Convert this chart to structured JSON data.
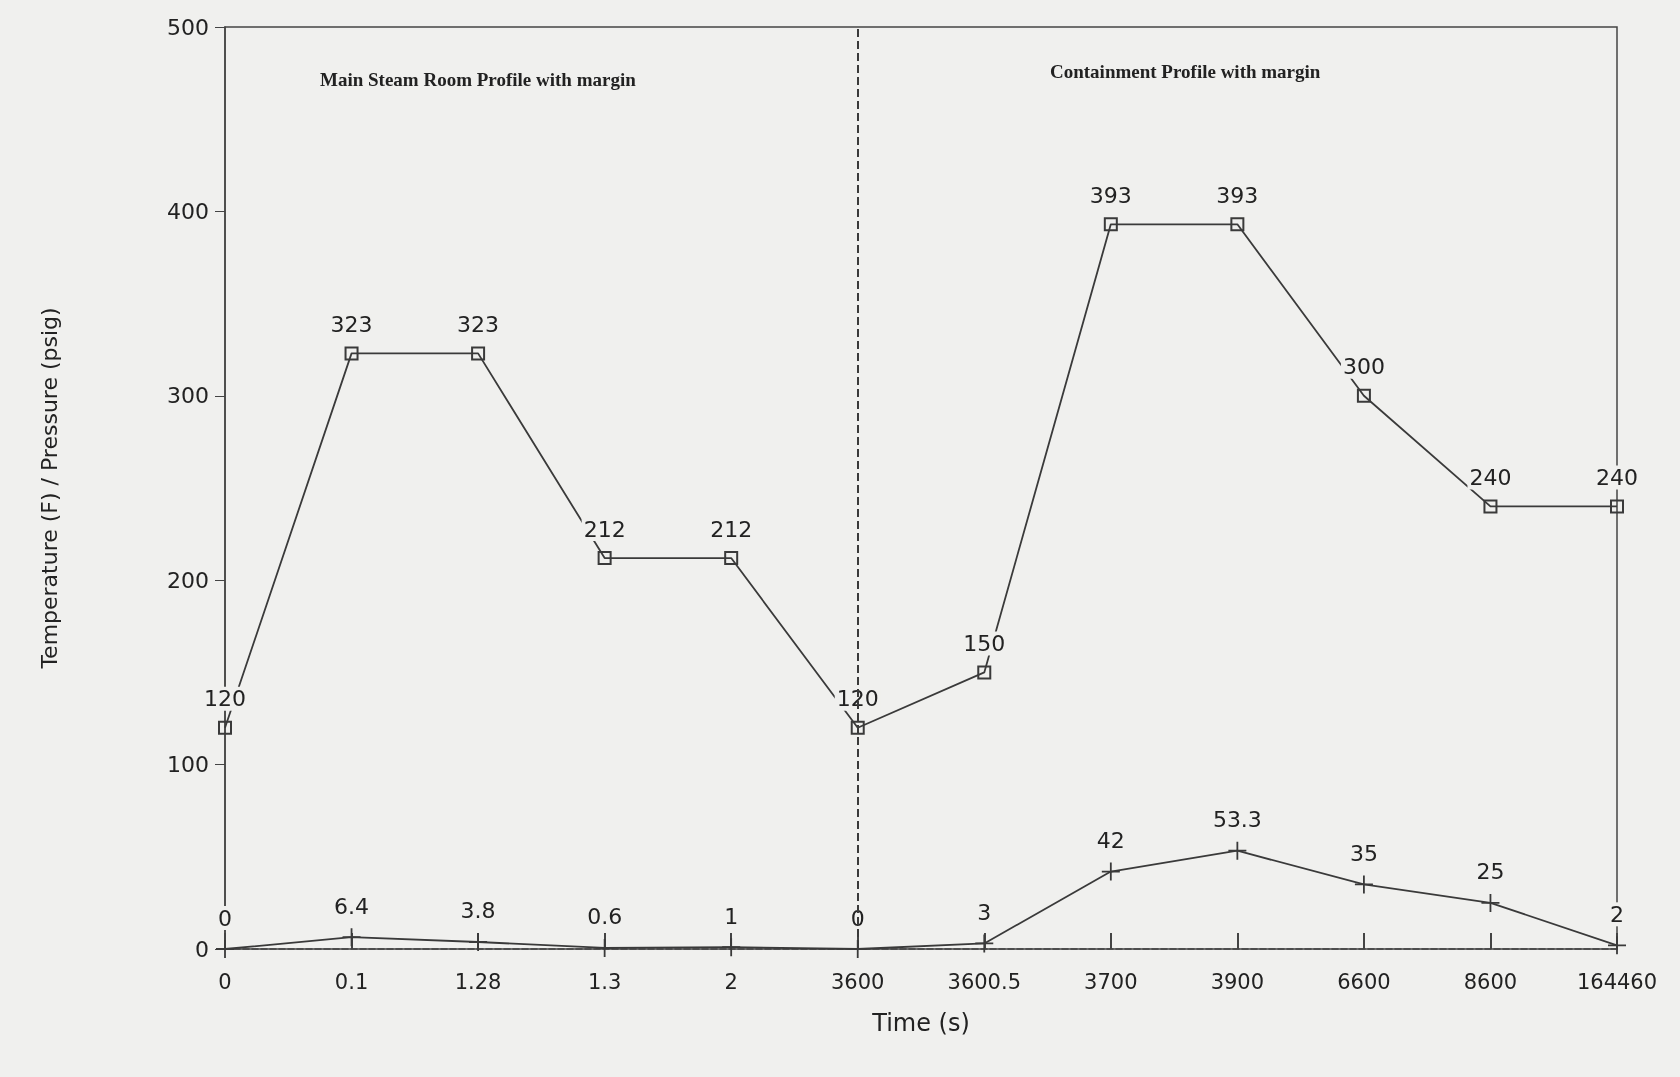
{
  "chart_data": {
    "type": "line",
    "xlabel": "Time (s)",
    "ylabel": "Temperature (F) / Pressure (psig)",
    "categories": [
      "0",
      "0.1",
      "1.28",
      "1.3",
      "2",
      "3600",
      "3600.5",
      "3700",
      "3900",
      "6600",
      "8600",
      "164460"
    ],
    "series": [
      {
        "color": "#3a3a3a",
        "marker": "square",
        "values": [
          120,
          323,
          323,
          212,
          212,
          120,
          150,
          393,
          393,
          300,
          240,
          240
        ]
      },
      {
        "color": "#3a3a3a",
        "marker": "cross",
        "values": [
          0,
          6.4,
          3.8,
          0.6,
          1,
          0,
          3,
          42,
          53.3,
          35,
          25,
          2
        ]
      }
    ],
    "ylim": [
      0,
      500
    ],
    "yticks": [
      0,
      100,
      200,
      300,
      400,
      500
    ],
    "grid": false,
    "data_labels": true,
    "ref_lines": [
      {
        "axis": "x",
        "value": "3600",
        "line_style": "dashed",
        "color": "#3a3a3a"
      }
    ],
    "annotations": [
      "Main Steam Room Profile with margin",
      "Containment Profile with margin"
    ]
  }
}
